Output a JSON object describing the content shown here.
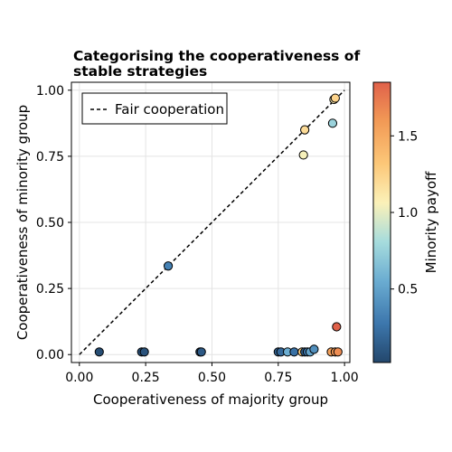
{
  "chart_data": {
    "type": "scatter",
    "title_line1": "Categorising the cooperativeness of",
    "title_line2": "stable strategies",
    "xlabel": "Cooperativeness of majority group",
    "ylabel": "Cooperativeness of minority group",
    "xlim": [
      -0.03,
      1.02
    ],
    "ylim": [
      -0.03,
      1.03
    ],
    "xticks": [
      "0.00",
      "0.25",
      "0.50",
      "0.75",
      "1.00"
    ],
    "yticks": [
      "0.00",
      "0.25",
      "0.50",
      "0.75",
      "1.00"
    ],
    "grid": true,
    "legend": {
      "label": "Fair cooperation",
      "placement": "top-left",
      "line_style": "dashed"
    },
    "reference_line": {
      "x": [
        0,
        1
      ],
      "y": [
        0,
        1
      ]
    },
    "colorbar": {
      "label": "Minority payoff",
      "range": [
        0.02,
        1.85
      ],
      "ticks": [
        "0.5",
        "1.0",
        "1.5"
      ],
      "tick_values": [
        0.5,
        1.0,
        1.5
      ],
      "colors": [
        "#23476c",
        "#3d77ad",
        "#6aacd1",
        "#a6dcdd",
        "#fbf1b8",
        "#fcc778",
        "#f29a56",
        "#e0614a"
      ]
    },
    "points": [
      {
        "x": 0.075,
        "y": 0.01,
        "payoff": 0.05
      },
      {
        "x": 0.235,
        "y": 0.01,
        "payoff": 0.06
      },
      {
        "x": 0.245,
        "y": 0.01,
        "payoff": 0.08
      },
      {
        "x": 0.455,
        "y": 0.01,
        "payoff": 0.1
      },
      {
        "x": 0.46,
        "y": 0.01,
        "payoff": 0.12
      },
      {
        "x": 0.335,
        "y": 0.335,
        "payoff": 0.33
      },
      {
        "x": 0.75,
        "y": 0.01,
        "payoff": 0.15
      },
      {
        "x": 0.76,
        "y": 0.01,
        "payoff": 0.2
      },
      {
        "x": 0.785,
        "y": 0.01,
        "payoff": 0.55
      },
      {
        "x": 0.81,
        "y": 0.01,
        "payoff": 0.25
      },
      {
        "x": 0.84,
        "y": 0.01,
        "payoff": 1.3
      },
      {
        "x": 0.85,
        "y": 0.01,
        "payoff": 0.12
      },
      {
        "x": 0.86,
        "y": 0.01,
        "payoff": 0.3
      },
      {
        "x": 0.87,
        "y": 0.01,
        "payoff": 0.5
      },
      {
        "x": 0.885,
        "y": 0.02,
        "payoff": 0.4
      },
      {
        "x": 0.845,
        "y": 0.755,
        "payoff": 1.05
      },
      {
        "x": 0.85,
        "y": 0.85,
        "payoff": 1.2
      },
      {
        "x": 0.955,
        "y": 0.875,
        "payoff": 0.75
      },
      {
        "x": 0.96,
        "y": 0.965,
        "payoff": 1.1
      },
      {
        "x": 0.965,
        "y": 0.97,
        "payoff": 1.25
      },
      {
        "x": 0.97,
        "y": 0.105,
        "payoff": 1.85
      },
      {
        "x": 0.95,
        "y": 0.01,
        "payoff": 1.55
      },
      {
        "x": 0.965,
        "y": 0.01,
        "payoff": 1.6
      },
      {
        "x": 0.975,
        "y": 0.01,
        "payoff": 1.65
      }
    ]
  }
}
